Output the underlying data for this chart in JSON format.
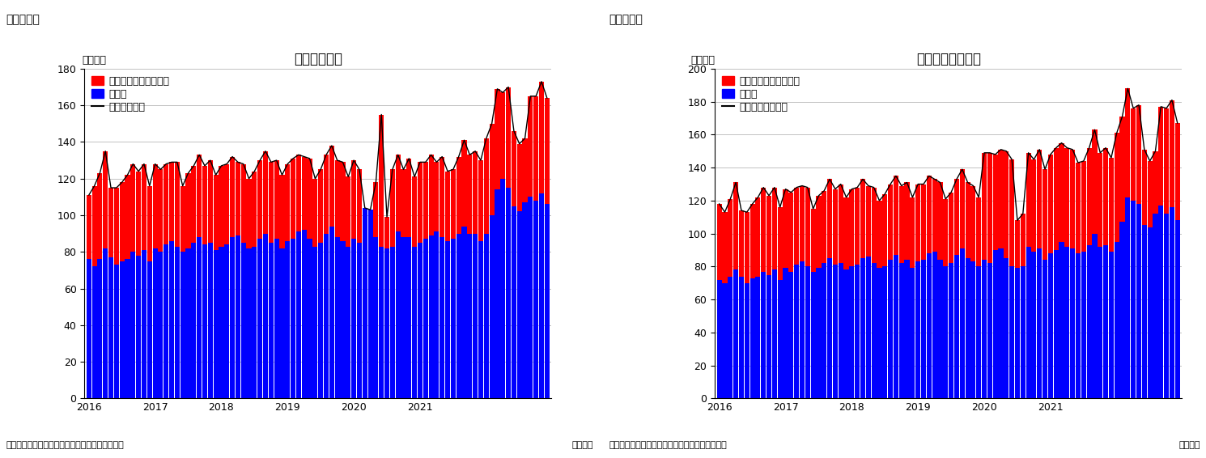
{
  "chart1": {
    "title": "住宅着工件数",
    "label": "（図表１）",
    "ylabel": "（万件）",
    "xlabel": "（月次）",
    "source": "（資料）センサス局よりニッセイ基礎研究所作成",
    "legend_line": "住宅着工件数",
    "legend_blue": "戸建て",
    "legend_red": "集合住宅（二戸以上）",
    "ylim": [
      0,
      180
    ],
    "yticks": [
      0,
      20,
      40,
      60,
      80,
      100,
      120,
      140,
      160,
      180
    ],
    "blue": [
      76,
      72,
      76,
      82,
      77,
      73,
      75,
      76,
      80,
      78,
      81,
      75,
      82,
      80,
      84,
      86,
      83,
      80,
      82,
      85,
      88,
      84,
      85,
      81,
      83,
      84,
      88,
      89,
      85,
      82,
      83,
      87,
      90,
      85,
      87,
      82,
      86,
      87,
      91,
      92,
      87,
      83,
      85,
      90,
      94,
      88,
      86,
      83,
      87,
      85,
      104,
      103,
      88,
      83,
      82,
      83,
      91,
      88,
      88,
      83,
      85,
      87,
      89,
      91,
      88,
      86,
      87,
      90,
      94,
      90,
      90,
      86,
      90,
      100,
      114,
      120,
      115,
      105,
      102,
      107,
      110,
      108,
      112,
      106
    ],
    "red": [
      35,
      44,
      47,
      53,
      38,
      42,
      43,
      46,
      48,
      46,
      47,
      41,
      46,
      45,
      44,
      43,
      46,
      36,
      41,
      42,
      45,
      43,
      45,
      41,
      44,
      44,
      44,
      40,
      43,
      38,
      41,
      43,
      45,
      44,
      43,
      40,
      42,
      44,
      42,
      40,
      44,
      37,
      40,
      43,
      44,
      42,
      43,
      38,
      43,
      40,
      0,
      0,
      30,
      72,
      17,
      42,
      42,
      37,
      43,
      38,
      44,
      42,
      44,
      38,
      44,
      38,
      38,
      42,
      47,
      43,
      45,
      44,
      52,
      50,
      55,
      47,
      55,
      41,
      37,
      35,
      55,
      57,
      61,
      58
    ],
    "total": [
      111,
      116,
      123,
      135,
      115,
      115,
      118,
      122,
      128,
      124,
      128,
      116,
      128,
      125,
      128,
      129,
      129,
      116,
      123,
      127,
      133,
      127,
      130,
      122,
      127,
      128,
      132,
      129,
      128,
      120,
      124,
      130,
      135,
      129,
      130,
      122,
      128,
      131,
      133,
      132,
      131,
      120,
      125,
      133,
      138,
      130,
      129,
      121,
      130,
      125,
      104,
      103,
      118,
      155,
      99,
      125,
      133,
      125,
      131,
      121,
      129,
      129,
      133,
      129,
      132,
      124,
      125,
      132,
      141,
      133,
      135,
      130,
      142,
      150,
      169,
      167,
      170,
      146,
      139,
      142,
      165,
      165,
      173,
      164
    ]
  },
  "chart2": {
    "title": "住宅着工許可件数",
    "label": "（図表２）",
    "ylabel": "（万件）",
    "xlabel": "（月次）",
    "source": "（資料）センサス局よりニッセイ基礎研究所作成",
    "legend_line": "住宅建築許可件数",
    "legend_blue": "戸建て",
    "legend_red": "集合住宅（二戸以上）",
    "ylim": [
      0,
      200
    ],
    "yticks": [
      0,
      20,
      40,
      60,
      80,
      100,
      120,
      140,
      160,
      180,
      200
    ],
    "blue": [
      72,
      70,
      74,
      78,
      74,
      70,
      73,
      74,
      77,
      75,
      78,
      72,
      79,
      77,
      81,
      83,
      80,
      77,
      79,
      82,
      85,
      81,
      82,
      78,
      80,
      81,
      85,
      86,
      82,
      79,
      80,
      84,
      87,
      82,
      84,
      79,
      83,
      84,
      88,
      89,
      84,
      80,
      82,
      87,
      91,
      85,
      83,
      80,
      84,
      82,
      90,
      91,
      85,
      80,
      79,
      80,
      92,
      89,
      91,
      84,
      88,
      90,
      95,
      92,
      91,
      88,
      89,
      93,
      100,
      92,
      93,
      89,
      95,
      107,
      122,
      120,
      118,
      105,
      104,
      112,
      117,
      112,
      116,
      108
    ],
    "red": [
      46,
      43,
      47,
      53,
      40,
      43,
      45,
      48,
      51,
      48,
      50,
      44,
      48,
      48,
      47,
      46,
      48,
      38,
      44,
      44,
      48,
      46,
      48,
      44,
      47,
      47,
      48,
      43,
      46,
      41,
      44,
      46,
      48,
      47,
      47,
      43,
      47,
      46,
      47,
      44,
      47,
      41,
      43,
      46,
      48,
      46,
      46,
      42,
      65,
      67,
      58,
      60,
      65,
      65,
      29,
      32,
      57,
      56,
      60,
      55,
      60,
      62,
      60,
      60,
      60,
      55,
      55,
      59,
      63,
      57,
      59,
      57,
      66,
      64,
      66,
      56,
      60,
      46,
      40,
      38,
      60,
      64,
      65,
      59
    ],
    "total": [
      118,
      113,
      121,
      131,
      114,
      113,
      118,
      122,
      128,
      123,
      128,
      116,
      127,
      125,
      128,
      129,
      128,
      115,
      123,
      126,
      133,
      127,
      130,
      122,
      127,
      128,
      133,
      129,
      128,
      120,
      124,
      130,
      135,
      129,
      131,
      122,
      130,
      130,
      135,
      133,
      131,
      121,
      125,
      133,
      139,
      131,
      129,
      122,
      149,
      149,
      148,
      151,
      150,
      145,
      108,
      112,
      149,
      145,
      151,
      139,
      148,
      152,
      155,
      152,
      151,
      143,
      144,
      152,
      163,
      149,
      152,
      146,
      161,
      171,
      188,
      176,
      178,
      151,
      144,
      150,
      177,
      176,
      181,
      167
    ]
  },
  "months": 84,
  "bar_color_red": "#FF0000",
  "bar_color_blue": "#0000FF",
  "line_color": "#000000",
  "background_color": "#FFFFFF",
  "title_fontsize": 12,
  "label_fontsize": 9,
  "tick_fontsize": 9,
  "legend_fontsize": 9,
  "year_ticks": [
    0,
    12,
    24,
    36,
    48,
    60,
    72
  ],
  "year_labels": [
    "2016",
    "2017",
    "2018",
    "2019",
    "2020",
    "2021",
    ""
  ]
}
